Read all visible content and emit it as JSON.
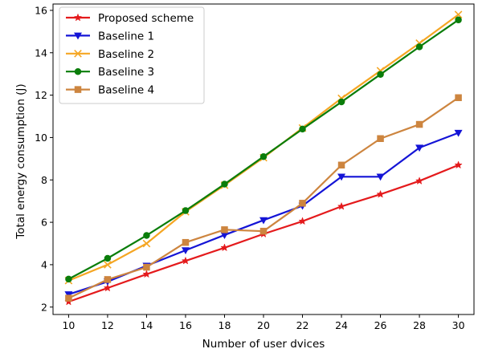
{
  "chart_data": {
    "type": "line",
    "xlabel": "Number of user dvices",
    "ylabel": "Total energy consumption (J)",
    "x": [
      10,
      12,
      14,
      16,
      18,
      20,
      22,
      24,
      26,
      28,
      30
    ],
    "xlim": [
      9.2,
      30.8
    ],
    "ylim": [
      1.65,
      16.3
    ],
    "xticks": [
      "10",
      "12",
      "14",
      "16",
      "18",
      "20",
      "22",
      "24",
      "26",
      "28",
      "30"
    ],
    "yticks": [
      "2",
      "4",
      "6",
      "8",
      "10",
      "12",
      "14",
      "16"
    ],
    "grid": false,
    "legend_position": "top-left",
    "series": [
      {
        "name": "Proposed scheme",
        "color": "#e41a1c",
        "marker": "star",
        "values": [
          2.25,
          2.9,
          3.55,
          4.18,
          4.8,
          5.45,
          6.05,
          6.75,
          7.32,
          7.95,
          8.7
        ]
      },
      {
        "name": "Baseline 1",
        "color": "#1414d6",
        "marker": "triangle-down",
        "values": [
          2.6,
          3.2,
          3.95,
          4.68,
          5.4,
          6.1,
          6.78,
          8.15,
          8.15,
          9.52,
          10.22
        ]
      },
      {
        "name": "Baseline 2",
        "color": "#f5a623",
        "marker": "x",
        "values": [
          3.25,
          4.0,
          5.0,
          6.5,
          7.75,
          9.05,
          10.45,
          11.85,
          13.15,
          14.45,
          15.8
        ]
      },
      {
        "name": "Baseline 3",
        "color": "#0a7d0a",
        "marker": "circle",
        "values": [
          3.32,
          4.3,
          5.38,
          6.55,
          7.8,
          9.1,
          10.4,
          11.68,
          12.98,
          14.28,
          15.55
        ]
      },
      {
        "name": "Baseline 4",
        "color": "#cd853f",
        "marker": "square",
        "values": [
          2.42,
          3.3,
          3.88,
          5.05,
          5.65,
          5.58,
          6.9,
          8.7,
          9.95,
          10.62,
          11.88
        ]
      }
    ]
  }
}
